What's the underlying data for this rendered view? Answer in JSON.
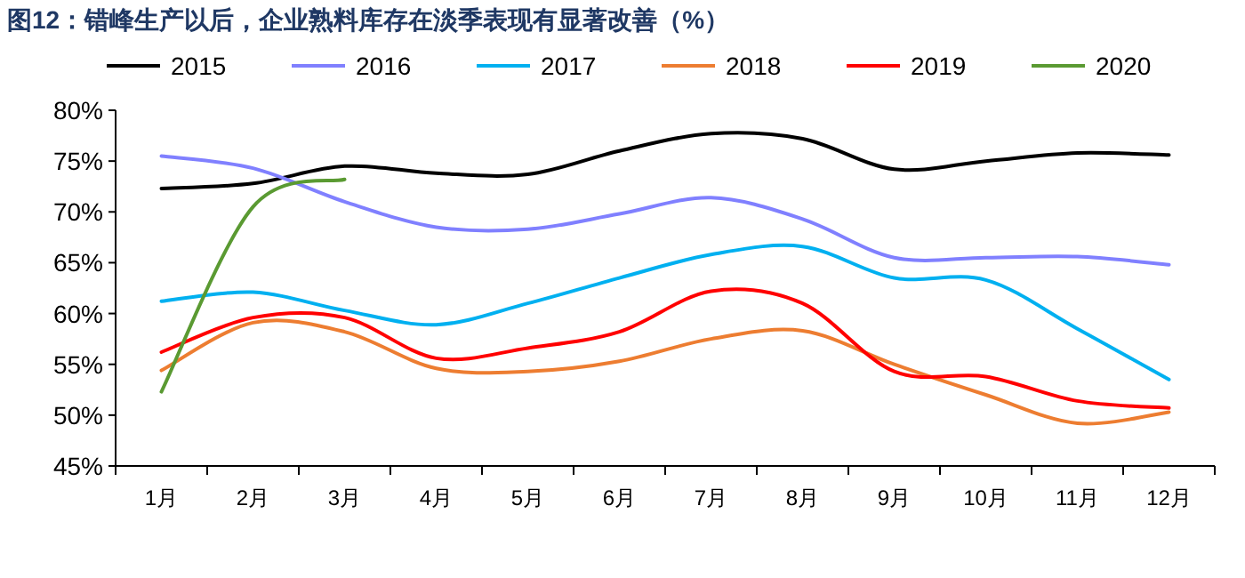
{
  "chart_data": {
    "type": "line",
    "title": "图12：错峰生产以后，企业熟料库存在淡季表现有显著改善（%）",
    "categories": [
      "1月",
      "2月",
      "3月",
      "4月",
      "5月",
      "6月",
      "7月",
      "8月",
      "9月",
      "10月",
      "11月",
      "12月"
    ],
    "series": [
      {
        "name": "2015",
        "color": "#000000",
        "values": [
          72.3,
          72.8,
          74.5,
          73.8,
          73.7,
          76.0,
          77.7,
          77.2,
          74.2,
          75.0,
          75.8,
          75.6
        ]
      },
      {
        "name": "2016",
        "color": "#8080ff",
        "values": [
          75.5,
          74.3,
          71.0,
          68.5,
          68.3,
          69.8,
          71.4,
          69.3,
          65.5,
          65.5,
          65.6,
          64.8
        ]
      },
      {
        "name": "2017",
        "color": "#00b0f0",
        "values": [
          61.2,
          62.1,
          60.3,
          58.9,
          61.0,
          63.5,
          65.8,
          66.6,
          63.5,
          63.3,
          58.5,
          53.5
        ]
      },
      {
        "name": "2018",
        "color": "#ed7d31",
        "values": [
          54.4,
          59.1,
          58.2,
          54.6,
          54.3,
          55.3,
          57.5,
          58.3,
          55.0,
          52.0,
          49.2,
          50.3
        ]
      },
      {
        "name": "2019",
        "color": "#ff0000",
        "values": [
          56.2,
          59.6,
          59.6,
          55.6,
          56.6,
          58.2,
          62.2,
          61.0,
          54.3,
          53.8,
          51.4,
          50.7
        ]
      },
      {
        "name": "2020",
        "color": "#5a9a32",
        "values": [
          52.3,
          70.5,
          73.2,
          null,
          null,
          null,
          null,
          null,
          null,
          null,
          null,
          null
        ]
      }
    ],
    "ylim": [
      45,
      80
    ],
    "yticks": [
      {
        "value": 45,
        "label": "45%"
      },
      {
        "value": 50,
        "label": "50%"
      },
      {
        "value": 55,
        "label": "55%"
      },
      {
        "value": 60,
        "label": "60%"
      },
      {
        "value": 65,
        "label": "65%"
      },
      {
        "value": 70,
        "label": "70%"
      },
      {
        "value": 75,
        "label": "75%"
      },
      {
        "value": 80,
        "label": "80%"
      }
    ],
    "grid": false,
    "legend": "top",
    "marker": "none",
    "line_style": "solid"
  }
}
